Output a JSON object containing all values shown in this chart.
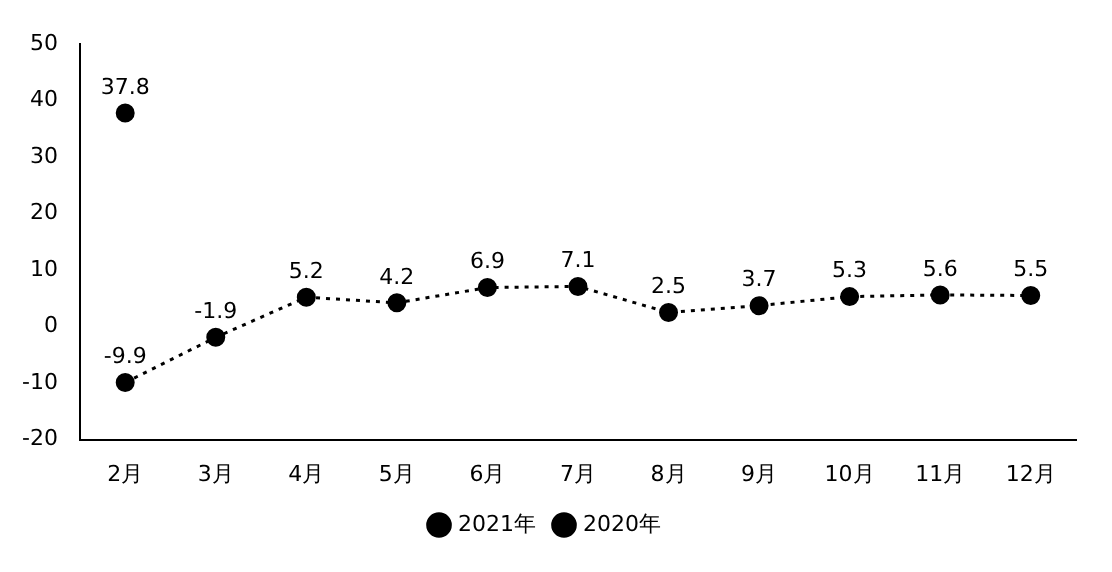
{
  "chart_data": {
    "type": "line",
    "categories": [
      "2月",
      "3月",
      "4月",
      "5月",
      "6月",
      "7月",
      "8月",
      "9月",
      "10月",
      "11月",
      "12月"
    ],
    "series": [
      {
        "name": "2021年",
        "color": "#000000",
        "line_style": "solid",
        "values": [
          37.8,
          null,
          null,
          null,
          null,
          null,
          null,
          null,
          null,
          null,
          null
        ]
      },
      {
        "name": "2020年",
        "color": "#000000",
        "line_style": "dotted",
        "values": [
          -9.9,
          -1.9,
          5.2,
          4.2,
          6.9,
          7.1,
          2.5,
          3.7,
          5.3,
          5.6,
          5.5
        ]
      }
    ],
    "ylim": [
      -20,
      50
    ],
    "yticks": [
      -20,
      -10,
      0,
      10,
      20,
      30,
      40,
      50
    ],
    "grid": false,
    "legend": "bottom",
    "marker": "circle",
    "data_labels": true
  }
}
